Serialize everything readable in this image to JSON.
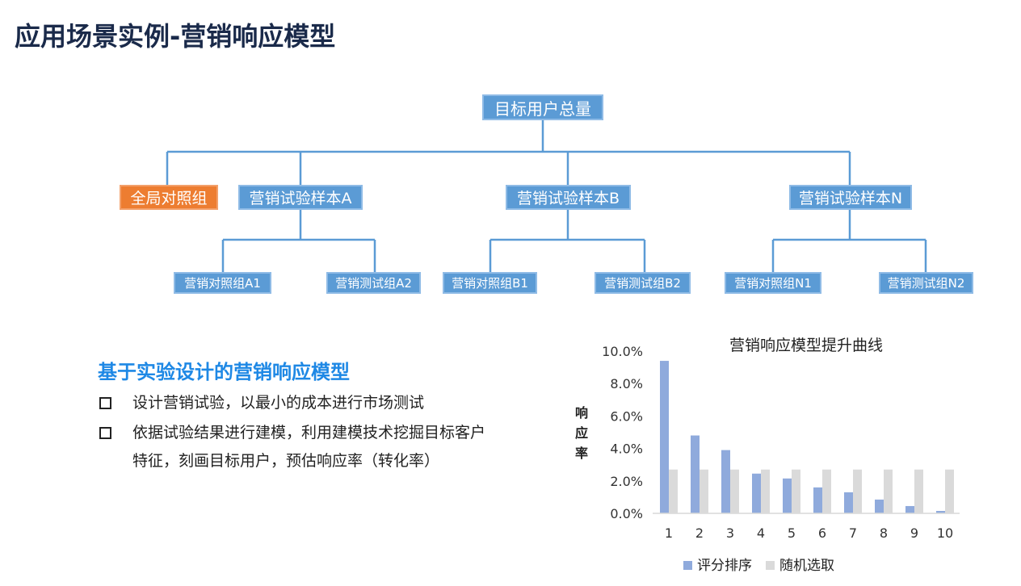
{
  "page": {
    "title": "应用场景实例-营销响应模型"
  },
  "tree": {
    "root": "目标用户总量",
    "global_control": "全局对照组",
    "samples": [
      {
        "label": "营销试验样本A",
        "children": [
          "营销对照组A1",
          "营销测试组A2"
        ]
      },
      {
        "label": "营销试验样本B",
        "children": [
          "营销对照组B1",
          "营销测试组B2"
        ]
      },
      {
        "label": "营销试验样本N",
        "children": [
          "营销对照组N1",
          "营销测试组N2"
        ]
      }
    ],
    "colors": {
      "node": "#5b9bd5",
      "global": "#ed7d31",
      "line": "#5b9bd5"
    }
  },
  "section": {
    "heading": "基于实验设计的营销响应模型",
    "bullets": [
      "设计营销试验，以最小的成本进行市场测试",
      "依据试验结果进行建模，利用建模技术挖掘目标客户特征，刻画目标用户，预估响应率（转化率）"
    ]
  },
  "chart_data": {
    "type": "bar",
    "title": "营销响应模型提升曲线",
    "xlabel": "",
    "ylabel": "响应率",
    "categories": [
      "1",
      "2",
      "3",
      "4",
      "5",
      "6",
      "7",
      "8",
      "9",
      "10"
    ],
    "series": [
      {
        "name": "评分排序",
        "color": "#8faadc",
        "values": [
          9.4,
          4.8,
          3.9,
          2.45,
          2.15,
          1.6,
          1.3,
          0.85,
          0.45,
          0.15
        ]
      },
      {
        "name": "随机选取",
        "color": "#dadada",
        "values": [
          2.7,
          2.7,
          2.7,
          2.7,
          2.7,
          2.7,
          2.7,
          2.7,
          2.7,
          2.7
        ]
      }
    ],
    "ylim": [
      0,
      10
    ],
    "yticks": [
      "0.0%",
      "2.0%",
      "4.0%",
      "6.0%",
      "8.0%",
      "10.0%"
    ],
    "grid": false,
    "legend": "bottom"
  }
}
